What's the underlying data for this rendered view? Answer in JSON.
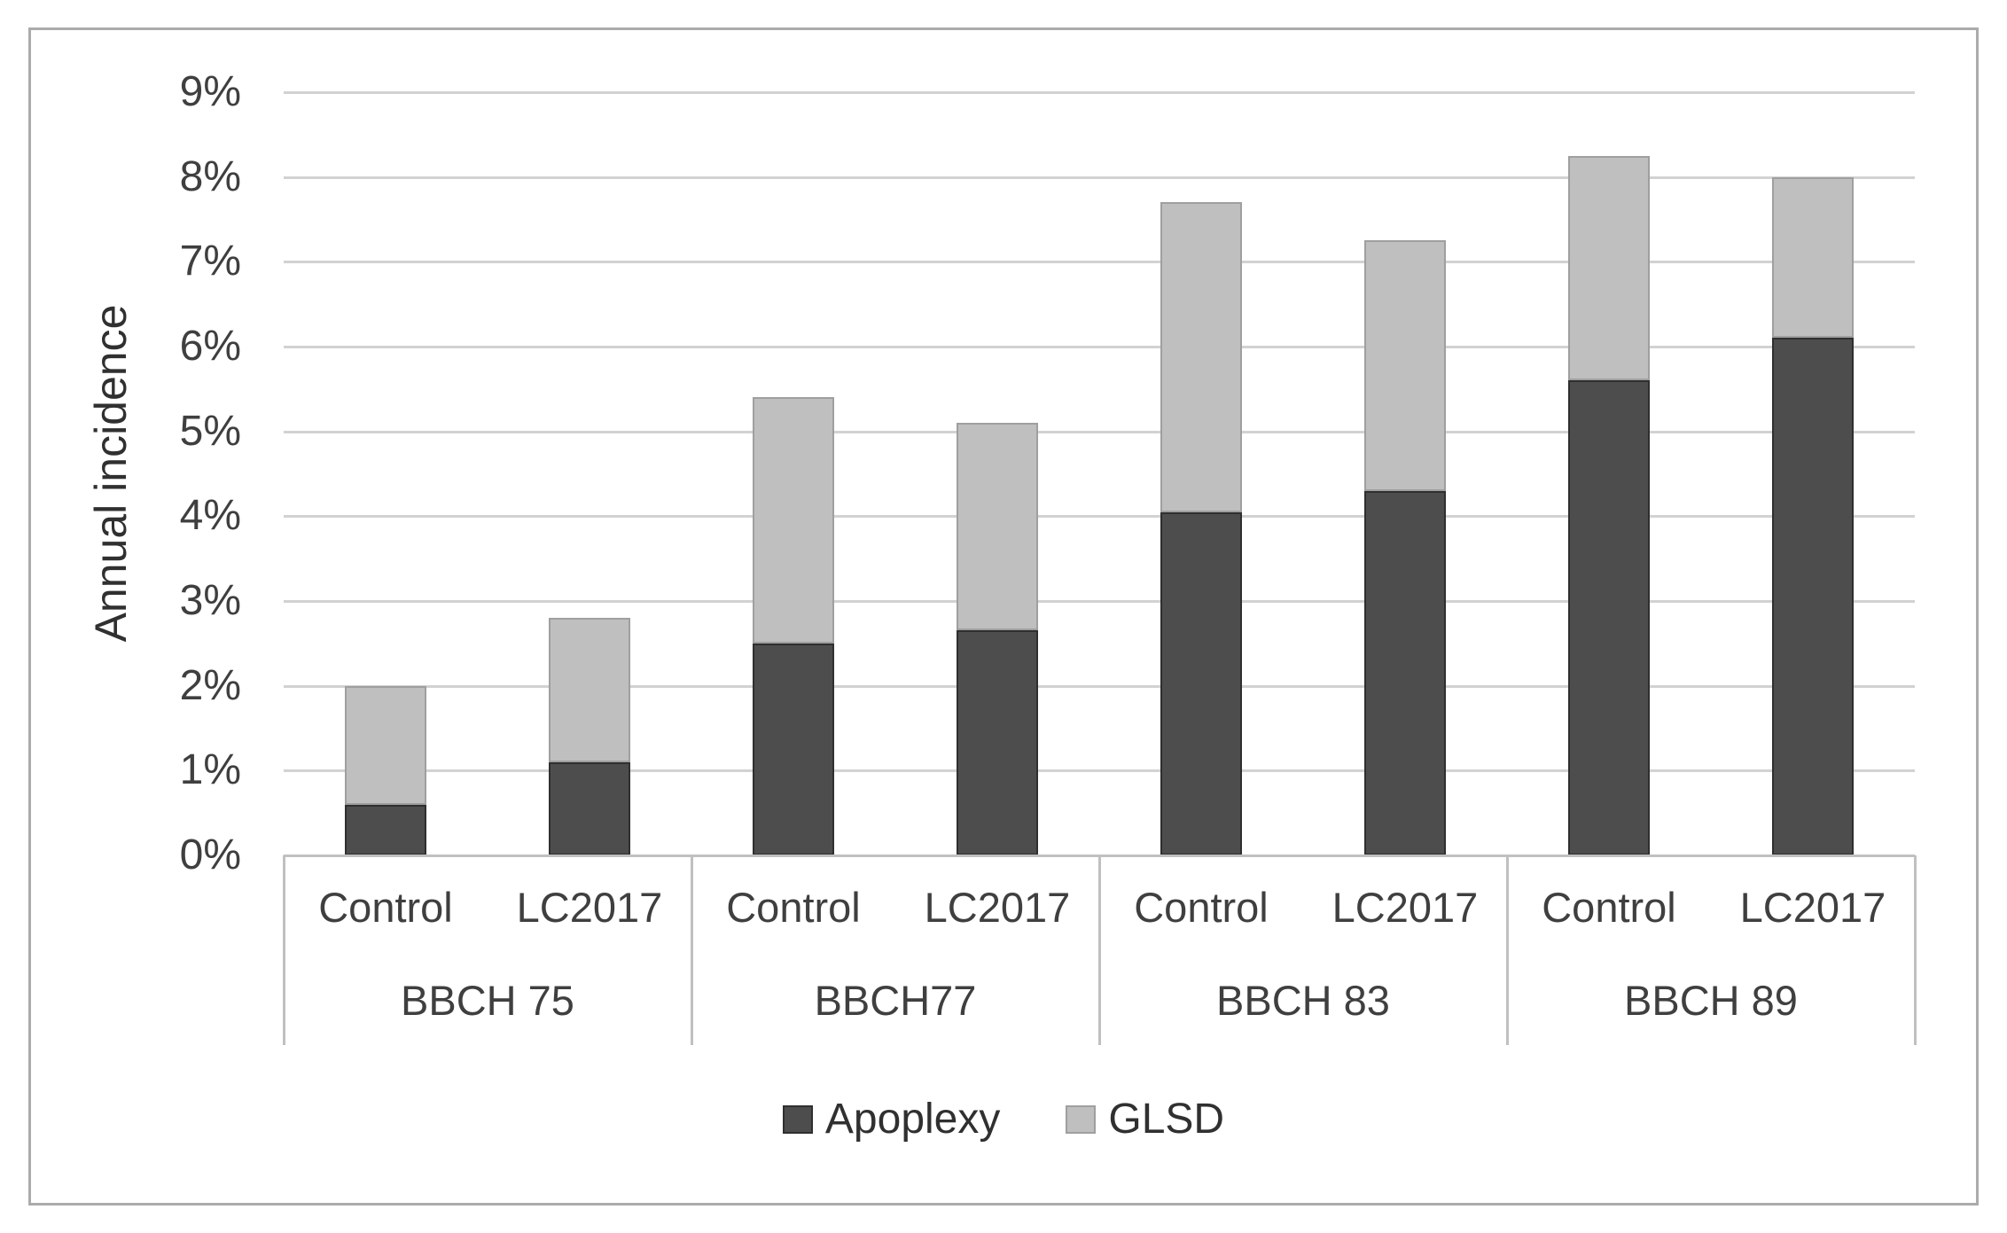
{
  "colors": {
    "apoplexy": "#4d4d4d",
    "apoplexy_border": "#2f2f2f",
    "glsd": "#bfbfbf",
    "glsd_border": "#9f9f9f",
    "gridline": "#d2d2d2",
    "axis_line": "#c0c0c0",
    "divider": "#c0c0c0",
    "text": "#3f3f3f",
    "outer_border": "#ababab"
  },
  "chart_data": {
    "type": "bar",
    "stacked": true,
    "title": "",
    "ylabel": "Annual incidence",
    "xlabel": "",
    "ylim": [
      0,
      9
    ],
    "ytick_step": 1,
    "grid": true,
    "legend_position": "bottom",
    "ytick_labels": [
      "0%",
      "1%",
      "2%",
      "3%",
      "4%",
      "5%",
      "6%",
      "7%",
      "8%",
      "9%"
    ],
    "groups": [
      "BBCH 75",
      "BBCH77",
      "BBCH 83",
      "BBCH 89"
    ],
    "conditions_per_group": [
      "Control",
      "LC2017"
    ],
    "categories": [
      "Control",
      "LC2017",
      "Control",
      "LC2017",
      "Control",
      "LC2017",
      "Control",
      "LC2017"
    ],
    "series": [
      {
        "name": "Apoplexy",
        "color": "#4d4d4d",
        "values": [
          0.6,
          1.1,
          2.5,
          2.65,
          4.05,
          4.3,
          5.6,
          6.1
        ]
      },
      {
        "name": "GLSD",
        "color": "#bfbfbf",
        "values": [
          1.4,
          1.7,
          2.9,
          2.45,
          3.65,
          2.95,
          2.65,
          1.9
        ]
      }
    ],
    "stack_totals": [
      2.0,
      2.8,
      5.4,
      5.1,
      7.7,
      7.25,
      8.25,
      8.0
    ]
  }
}
